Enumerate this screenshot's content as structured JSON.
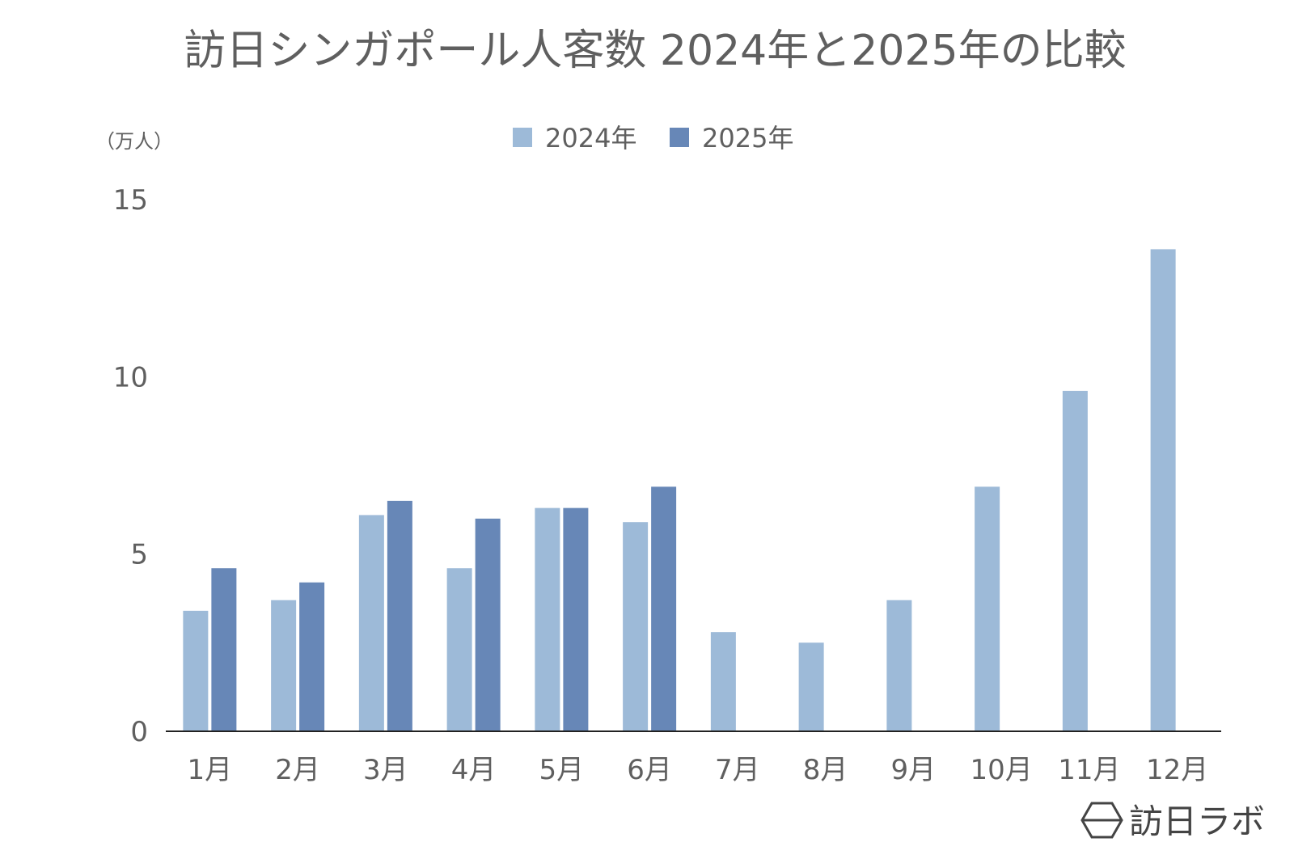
{
  "chart_data": {
    "type": "bar",
    "title": "訪日シンガポール人客数 2024年と2025年の比較",
    "ylabel": "（万人）",
    "ylim": [
      0,
      15
    ],
    "yticks": [
      0,
      5,
      10,
      15
    ],
    "grid": false,
    "legend_position": "top-center",
    "categories": [
      "1月",
      "2月",
      "3月",
      "4月",
      "5月",
      "6月",
      "7月",
      "8月",
      "9月",
      "10月",
      "11月",
      "12月"
    ],
    "series": [
      {
        "name": "2024年",
        "color": "#9dbad8",
        "values": [
          3.4,
          3.7,
          6.1,
          4.6,
          6.3,
          5.9,
          2.8,
          2.5,
          3.7,
          6.9,
          9.6,
          13.6
        ]
      },
      {
        "name": "2025年",
        "color": "#6787b7",
        "values": [
          4.6,
          4.2,
          6.5,
          6.0,
          6.3,
          6.9,
          null,
          null,
          null,
          null,
          null,
          null
        ]
      }
    ]
  },
  "brand": {
    "text": "訪日ラボ",
    "icon": "hexagon-logo-icon"
  }
}
